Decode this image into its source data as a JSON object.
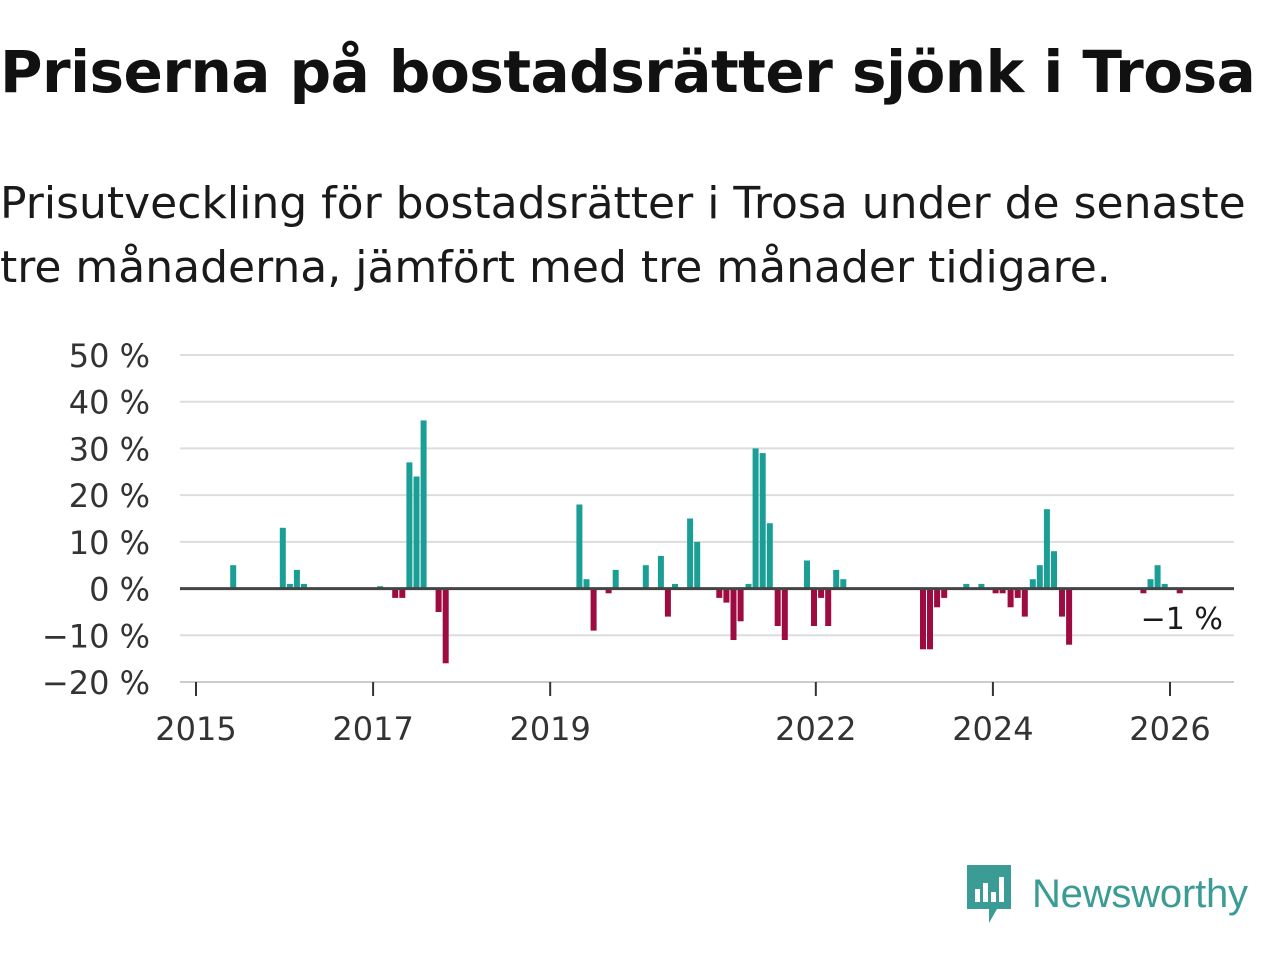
{
  "title": "Priserna på bostadsrätter sjönk i Trosa",
  "subtitle": "Prisutveckling för bostadsrätter i Trosa under de senaste tre månaderna, jämfört med tre månader tidigare.",
  "brand": {
    "name": "Newsworthy",
    "icon": "newsworthy-logo-icon",
    "color": "#3a9c94"
  },
  "colors": {
    "positive": "#1a9e96",
    "negative": "#9e0b41",
    "grid": "#dddddd",
    "zero_line": "#444444"
  },
  "chart_data": {
    "type": "bar",
    "title": "Priserna på bostadsrätter sjönk i Trosa",
    "xlabel": "",
    "ylabel": "",
    "unit": "%",
    "x_range": [
      2015.0,
      2026.7
    ],
    "ylim": [
      -20,
      50
    ],
    "yticks": [
      {
        "value": 50,
        "label": "50 %"
      },
      {
        "value": 40,
        "label": "40 %"
      },
      {
        "value": 30,
        "label": "30 %"
      },
      {
        "value": 20,
        "label": "20 %"
      },
      {
        "value": 10,
        "label": "10 %"
      },
      {
        "value": 0,
        "label": "0 %"
      },
      {
        "value": -10,
        "label": "−10 %"
      },
      {
        "value": -20,
        "label": "−20 %"
      }
    ],
    "xticks": [
      {
        "value": 2015,
        "label": "2015"
      },
      {
        "value": 2017,
        "label": "2017"
      },
      {
        "value": 2019,
        "label": "2019"
      },
      {
        "value": 2022,
        "label": "2022"
      },
      {
        "value": 2024,
        "label": "2024"
      },
      {
        "value": 2026,
        "label": "2026"
      }
    ],
    "grid": true,
    "last_value_label": "−1 %",
    "series": [
      {
        "name": "Prisutveckling",
        "points": [
          {
            "x": 2015.42,
            "y": 5
          },
          {
            "x": 2015.98,
            "y": 13
          },
          {
            "x": 2016.06,
            "y": 1
          },
          {
            "x": 2016.14,
            "y": 4
          },
          {
            "x": 2016.22,
            "y": 1
          },
          {
            "x": 2017.08,
            "y": 0.5
          },
          {
            "x": 2017.25,
            "y": -2
          },
          {
            "x": 2017.33,
            "y": -2
          },
          {
            "x": 2017.41,
            "y": 27
          },
          {
            "x": 2017.49,
            "y": 24
          },
          {
            "x": 2017.57,
            "y": 36
          },
          {
            "x": 2017.74,
            "y": -5
          },
          {
            "x": 2017.82,
            "y": -16
          },
          {
            "x": 2019.33,
            "y": 18
          },
          {
            "x": 2019.41,
            "y": 2
          },
          {
            "x": 2019.49,
            "y": -9
          },
          {
            "x": 2019.66,
            "y": -1
          },
          {
            "x": 2019.74,
            "y": 4
          },
          {
            "x": 2020.08,
            "y": 5
          },
          {
            "x": 2020.25,
            "y": 7
          },
          {
            "x": 2020.33,
            "y": -6
          },
          {
            "x": 2020.41,
            "y": 1
          },
          {
            "x": 2020.58,
            "y": 15
          },
          {
            "x": 2020.66,
            "y": 10
          },
          {
            "x": 2020.91,
            "y": -2
          },
          {
            "x": 2020.99,
            "y": -3
          },
          {
            "x": 2021.07,
            "y": -11
          },
          {
            "x": 2021.15,
            "y": -7
          },
          {
            "x": 2021.24,
            "y": 1
          },
          {
            "x": 2021.32,
            "y": 30
          },
          {
            "x": 2021.4,
            "y": 29
          },
          {
            "x": 2021.48,
            "y": 14
          },
          {
            "x": 2021.57,
            "y": -8
          },
          {
            "x": 2021.65,
            "y": -11
          },
          {
            "x": 2021.9,
            "y": 6
          },
          {
            "x": 2021.98,
            "y": -8
          },
          {
            "x": 2022.06,
            "y": -2
          },
          {
            "x": 2022.14,
            "y": -8
          },
          {
            "x": 2022.23,
            "y": 4
          },
          {
            "x": 2022.31,
            "y": 2
          },
          {
            "x": 2023.21,
            "y": -13
          },
          {
            "x": 2023.29,
            "y": -13
          },
          {
            "x": 2023.37,
            "y": -4
          },
          {
            "x": 2023.45,
            "y": -2
          },
          {
            "x": 2023.7,
            "y": 1
          },
          {
            "x": 2023.87,
            "y": 1
          },
          {
            "x": 2024.03,
            "y": -1
          },
          {
            "x": 2024.11,
            "y": -1
          },
          {
            "x": 2024.2,
            "y": -4
          },
          {
            "x": 2024.28,
            "y": -2
          },
          {
            "x": 2024.36,
            "y": -6
          },
          {
            "x": 2024.45,
            "y": 2
          },
          {
            "x": 2024.53,
            "y": 5
          },
          {
            "x": 2024.61,
            "y": 17
          },
          {
            "x": 2024.69,
            "y": 8
          },
          {
            "x": 2024.78,
            "y": -6
          },
          {
            "x": 2024.86,
            "y": -12
          },
          {
            "x": 2025.7,
            "y": -1
          },
          {
            "x": 2025.78,
            "y": 2
          },
          {
            "x": 2025.86,
            "y": 5
          },
          {
            "x": 2025.94,
            "y": 1
          },
          {
            "x": 2026.11,
            "y": -1
          }
        ]
      }
    ]
  }
}
